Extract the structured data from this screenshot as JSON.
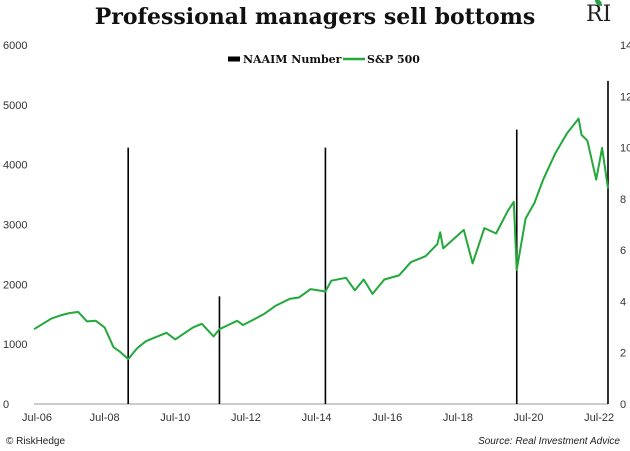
{
  "header": {
    "title": "Professional managers sell bottoms",
    "logo_text": "RI"
  },
  "footer": {
    "left": "© RiskHedge",
    "right": "Source: Real Investment Advice"
  },
  "colors": {
    "sp500": "#22a83b",
    "naaim": "#000000"
  },
  "chart_data": {
    "type": "line",
    "title": "Professional managers sell bottoms",
    "legend": {
      "placement": "top-center",
      "entries": [
        "NAAIM Number",
        "S&P 500"
      ]
    },
    "x_axis": {
      "ticks": [
        "Jul-06",
        "Jul-08",
        "Jul-10",
        "Jul-12",
        "Jul-14",
        "Jul-16",
        "Jul-18",
        "Jul-20",
        "Jul-22"
      ],
      "range": [
        "2006-07",
        "2022-10"
      ]
    },
    "y_left": {
      "range": [
        0,
        6000
      ],
      "ticks": [
        "0",
        "1000",
        "2000",
        "3000",
        "4000",
        "5000",
        "6000"
      ]
    },
    "y_right": {
      "range": [
        0,
        14
      ],
      "ticks": [
        "0",
        "2",
        "4",
        "6",
        "8",
        "10",
        "12",
        "14"
      ]
    },
    "grid": false,
    "series": [
      {
        "name": "S&P 500",
        "axis": "left",
        "type": "line",
        "points": [
          [
            "2006-07",
            1250
          ],
          [
            "2006-10",
            1340
          ],
          [
            "2007-01",
            1430
          ],
          [
            "2007-04",
            1480
          ],
          [
            "2007-07",
            1520
          ],
          [
            "2007-10",
            1540
          ],
          [
            "2008-01",
            1380
          ],
          [
            "2008-04",
            1390
          ],
          [
            "2008-07",
            1280
          ],
          [
            "2008-10",
            950
          ],
          [
            "2008-12",
            880
          ],
          [
            "2009-03",
            750
          ],
          [
            "2009-06",
            930
          ],
          [
            "2009-09",
            1050
          ],
          [
            "2009-12",
            1110
          ],
          [
            "2010-04",
            1190
          ],
          [
            "2010-07",
            1080
          ],
          [
            "2010-10",
            1180
          ],
          [
            "2011-01",
            1280
          ],
          [
            "2011-04",
            1340
          ],
          [
            "2011-08",
            1130
          ],
          [
            "2011-10",
            1250
          ],
          [
            "2012-01",
            1320
          ],
          [
            "2012-04",
            1390
          ],
          [
            "2012-06",
            1320
          ],
          [
            "2012-10",
            1420
          ],
          [
            "2013-01",
            1500
          ],
          [
            "2013-05",
            1640
          ],
          [
            "2013-10",
            1760
          ],
          [
            "2014-01",
            1780
          ],
          [
            "2014-05",
            1920
          ],
          [
            "2014-10",
            1880
          ],
          [
            "2014-12",
            2060
          ],
          [
            "2015-05",
            2110
          ],
          [
            "2015-08",
            1900
          ],
          [
            "2015-11",
            2080
          ],
          [
            "2016-02",
            1840
          ],
          [
            "2016-06",
            2080
          ],
          [
            "2016-11",
            2150
          ],
          [
            "2017-03",
            2370
          ],
          [
            "2017-08",
            2470
          ],
          [
            "2017-12",
            2670
          ],
          [
            "2018-01",
            2870
          ],
          [
            "2018-02",
            2600
          ],
          [
            "2018-09",
            2910
          ],
          [
            "2018-12",
            2350
          ],
          [
            "2019-04",
            2940
          ],
          [
            "2019-08",
            2850
          ],
          [
            "2019-12",
            3230
          ],
          [
            "2020-02",
            3380
          ],
          [
            "2020-03",
            2240
          ],
          [
            "2020-06",
            3100
          ],
          [
            "2020-09",
            3360
          ],
          [
            "2020-12",
            3750
          ],
          [
            "2021-04",
            4180
          ],
          [
            "2021-08",
            4520
          ],
          [
            "2021-12",
            4770
          ],
          [
            "2022-01",
            4500
          ],
          [
            "2022-03",
            4400
          ],
          [
            "2022-06",
            3750
          ],
          [
            "2022-08",
            4280
          ],
          [
            "2022-10",
            3600
          ]
        ]
      },
      {
        "name": "NAAIM Number",
        "axis": "right",
        "type": "spike",
        "points": [
          [
            "2009-03",
            10.0
          ],
          [
            "2011-10",
            4.2
          ],
          [
            "2014-10",
            10.0
          ],
          [
            "2020-03",
            10.7
          ],
          [
            "2022-10",
            12.6
          ]
        ]
      }
    ]
  }
}
